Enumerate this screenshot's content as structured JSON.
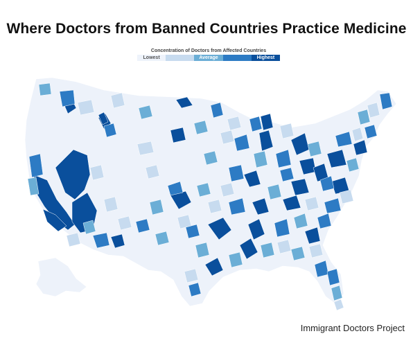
{
  "title": "Where Doctors from Banned Countries Practice Medicine",
  "legend": {
    "title": "Concentration of Doctors from Affected Countries",
    "levels": [
      {
        "label": "Lowest",
        "color": "#eef3fb",
        "text_color": "#555555"
      },
      {
        "label": "",
        "color": "#c7dbef",
        "text_color": "#555555"
      },
      {
        "label": "Average",
        "color": "#6baed6",
        "text_color": "#ffffff"
      },
      {
        "label": "",
        "color": "#2d7bc4",
        "text_color": "#ffffff"
      },
      {
        "label": "Highest",
        "color": "#0a4f9c",
        "text_color": "#ffffff"
      }
    ]
  },
  "source": "Immigrant Doctors Project"
}
